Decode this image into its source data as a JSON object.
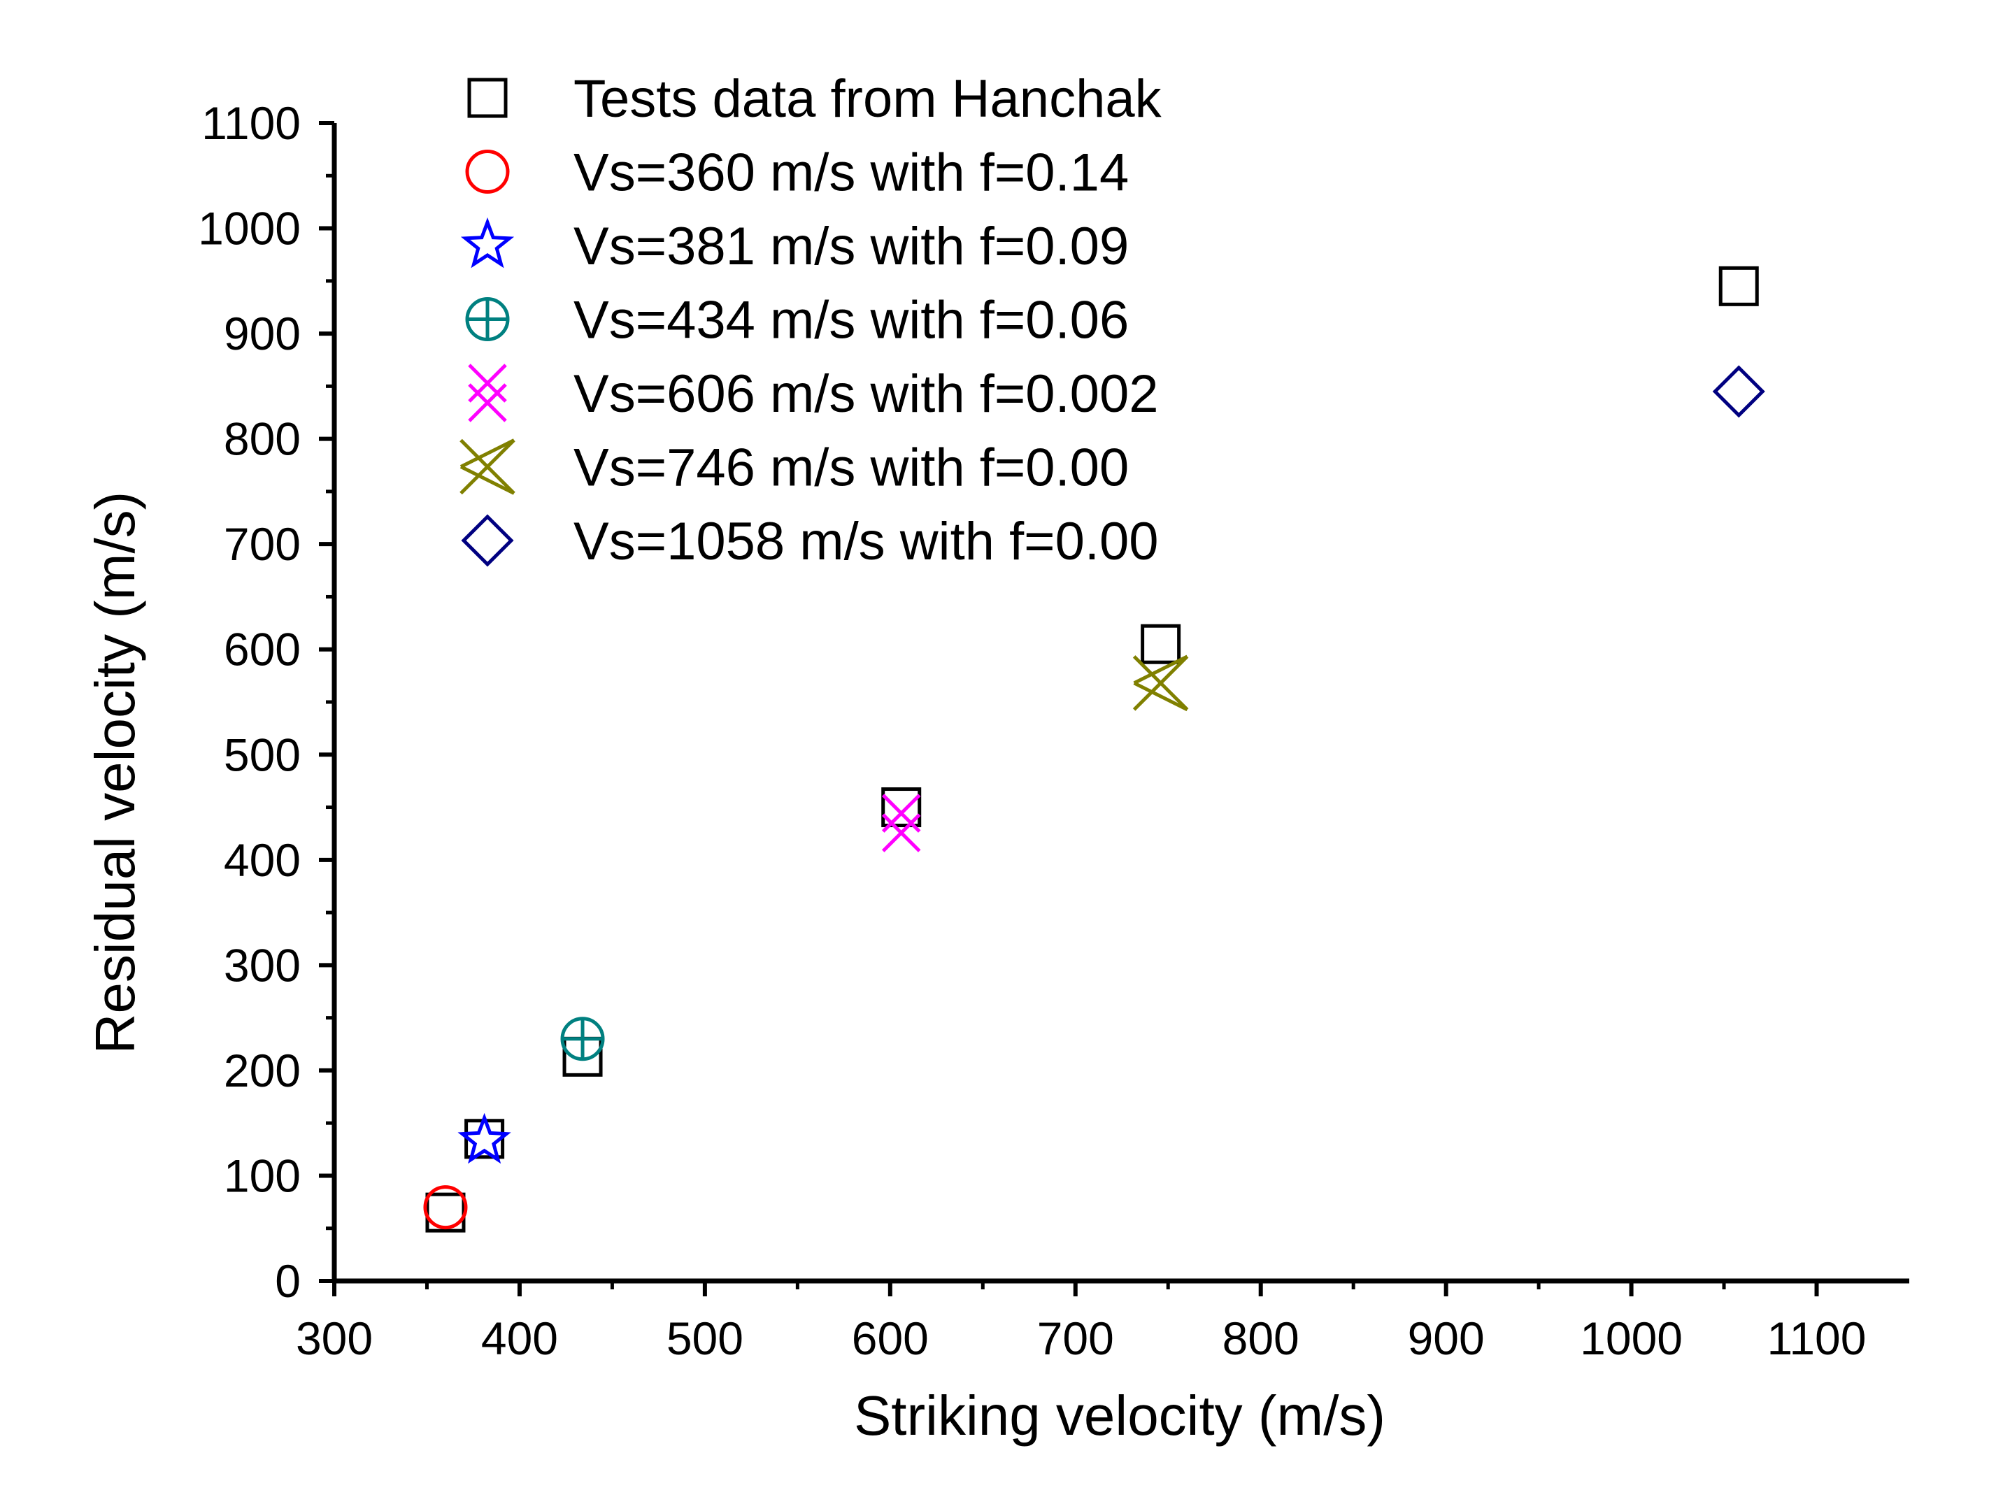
{
  "chart_data": {
    "type": "scatter",
    "title": "",
    "xlabel": "Striking velocity (m/s)",
    "ylabel": "Residual velocity (m/s)",
    "xlim": [
      300,
      1150
    ],
    "ylim": [
      0,
      1100
    ],
    "x_ticks": [
      "300",
      "400",
      "500",
      "600",
      "700",
      "800",
      "900",
      "1000",
      "1100"
    ],
    "y_ticks": [
      "0",
      "100",
      "200",
      "300",
      "400",
      "500",
      "600",
      "700",
      "800",
      "900",
      "1000",
      "1100"
    ],
    "grid": false,
    "legend_position": "top-left",
    "series": [
      {
        "name": "Tests data from Hanchak",
        "marker": "square",
        "color": "#000000",
        "points": [
          {
            "x": 360,
            "y": 65
          },
          {
            "x": 381,
            "y": 135
          },
          {
            "x": 434,
            "y": 213
          },
          {
            "x": 606,
            "y": 450
          },
          {
            "x": 746,
            "y": 605
          },
          {
            "x": 1058,
            "y": 945
          }
        ]
      },
      {
        "name": "Vs=360 m/s with f=0.14",
        "marker": "circle",
        "color": "#ff0000",
        "points": [
          {
            "x": 360,
            "y": 70
          }
        ]
      },
      {
        "name": "Vs=381 m/s with f=0.09",
        "marker": "star",
        "color": "#0000ff",
        "points": [
          {
            "x": 381,
            "y": 133
          }
        ]
      },
      {
        "name": "Vs=434 m/s with f=0.06",
        "marker": "circle-plus",
        "color": "#008080",
        "points": [
          {
            "x": 434,
            "y": 230
          }
        ]
      },
      {
        "name": "Vs=606 m/s with f=0.002",
        "marker": "double-x",
        "color": "#ff00ff",
        "points": [
          {
            "x": 606,
            "y": 435
          }
        ]
      },
      {
        "name": "Vs=746 m/s with f=0.00",
        "marker": "x-triangle",
        "color": "#808000",
        "points": [
          {
            "x": 746,
            "y": 568
          }
        ]
      },
      {
        "name": "Vs=1058 m/s with f=0.00",
        "marker": "diamond",
        "color": "#000080",
        "points": [
          {
            "x": 1058,
            "y": 845
          }
        ]
      }
    ]
  }
}
